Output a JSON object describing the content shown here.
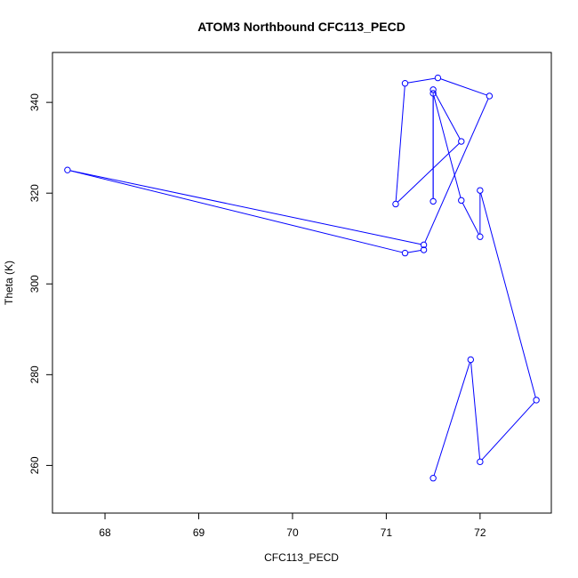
{
  "chart_data": {
    "type": "line",
    "title": "ATOM3 Northbound CFC113_PECD",
    "xlabel": "CFC113_PECD",
    "ylabel": "Theta (K)",
    "xlim": [
      67.44,
      72.76
    ],
    "ylim": [
      249.5,
      351
    ],
    "xticks": [
      68,
      69,
      70,
      71,
      72
    ],
    "yticks": [
      260,
      280,
      300,
      320,
      340
    ],
    "grid": false,
    "series": [
      {
        "color": "#0000ff",
        "marker": "open-circle",
        "points": [
          {
            "x": 71.5,
            "y": 257.2
          },
          {
            "x": 71.9,
            "y": 283.3
          },
          {
            "x": 72.0,
            "y": 260.8
          },
          {
            "x": 72.6,
            "y": 274.4
          },
          {
            "x": 72.0,
            "y": 320.6
          },
          {
            "x": 72.0,
            "y": 310.4
          },
          {
            "x": 71.8,
            "y": 318.4
          },
          {
            "x": 71.5,
            "y": 342.0
          },
          {
            "x": 71.5,
            "y": 318.2
          },
          {
            "x": 71.5,
            "y": 342.8
          },
          {
            "x": 71.8,
            "y": 331.4
          },
          {
            "x": 71.1,
            "y": 317.6
          },
          {
            "x": 71.2,
            "y": 344.2
          },
          {
            "x": 71.55,
            "y": 345.4
          },
          {
            "x": 72.1,
            "y": 341.4
          },
          {
            "x": 71.4,
            "y": 308.6
          },
          {
            "x": 67.6,
            "y": 325.1
          },
          {
            "x": 71.2,
            "y": 306.8
          },
          {
            "x": 71.4,
            "y": 307.5
          }
        ]
      }
    ]
  }
}
